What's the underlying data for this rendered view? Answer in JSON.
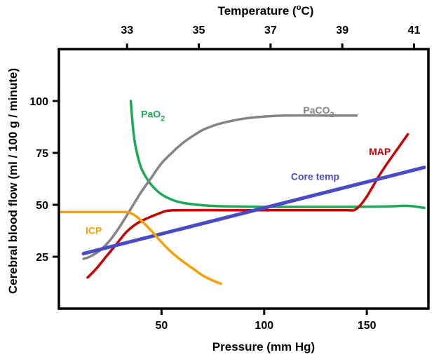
{
  "chart_data": {
    "type": "line",
    "title": "",
    "xlabel": "Pressure (mm Hg)",
    "ylabel": "Cerebral blood flow (ml / 100 g / minute)",
    "top_axis_label": "Temperature (°C)",
    "xlim": [
      0,
      180
    ],
    "ylim": [
      0,
      125
    ],
    "top_xlim": [
      31.1,
      41.4
    ],
    "x_ticks": [
      {
        "value": 50,
        "label": "50"
      },
      {
        "value": 100,
        "label": "100"
      },
      {
        "value": 150,
        "label": "150"
      }
    ],
    "y_ticks": [
      {
        "value": 25,
        "label": "25"
      },
      {
        "value": 50,
        "label": "50"
      },
      {
        "value": 75,
        "label": "75"
      },
      {
        "value": 100,
        "label": "100"
      }
    ],
    "top_ticks": [
      {
        "value": 33,
        "label": "33"
      },
      {
        "value": 35,
        "label": "35"
      },
      {
        "value": 37,
        "label": "37"
      },
      {
        "value": 39,
        "label": "39"
      },
      {
        "value": 41,
        "label": "41"
      }
    ],
    "grid": false,
    "series": [
      {
        "name": "PaO2",
        "label_main": "PaO",
        "label_sub": "2",
        "color": "#1aaa55",
        "label_at": [
          40,
          92
        ],
        "points": [
          [
            35,
            100
          ],
          [
            36,
            88
          ],
          [
            37,
            80
          ],
          [
            38.5,
            73
          ],
          [
            40,
            68
          ],
          [
            42,
            64
          ],
          [
            44,
            61
          ],
          [
            46,
            58.5
          ],
          [
            50,
            55
          ],
          [
            55,
            52.5
          ],
          [
            60,
            51
          ],
          [
            70,
            49.8
          ],
          [
            80,
            49.3
          ],
          [
            100,
            49
          ],
          [
            120,
            49
          ],
          [
            140,
            49
          ],
          [
            160,
            49.2
          ],
          [
            170,
            49.5
          ],
          [
            178,
            48.5
          ]
        ]
      },
      {
        "name": "PaCO2",
        "label_main": "PaCO",
        "label_sub": "2",
        "color": "#848484",
        "label_at": [
          119,
          94
        ],
        "points": [
          [
            12,
            24
          ],
          [
            15,
            25
          ],
          [
            20,
            28
          ],
          [
            25,
            33
          ],
          [
            30,
            40
          ],
          [
            35,
            48
          ],
          [
            40,
            56
          ],
          [
            45,
            63
          ],
          [
            50,
            70
          ],
          [
            55,
            75
          ],
          [
            60,
            79.5
          ],
          [
            65,
            83
          ],
          [
            70,
            86
          ],
          [
            75,
            88
          ],
          [
            80,
            89.5
          ],
          [
            90,
            91.5
          ],
          [
            100,
            92.5
          ],
          [
            110,
            93
          ],
          [
            130,
            93
          ],
          [
            145,
            93
          ]
        ]
      },
      {
        "name": "MAP",
        "label_main": "MAP",
        "label_sub": "",
        "color": "#c40000",
        "label_at": [
          151,
          74
        ],
        "points": [
          [
            14,
            15
          ],
          [
            18,
            19
          ],
          [
            23,
            25
          ],
          [
            28,
            31
          ],
          [
            33,
            37
          ],
          [
            38,
            41
          ],
          [
            43,
            43.5
          ],
          [
            48,
            45.5
          ],
          [
            52,
            47
          ],
          [
            55,
            47.3
          ],
          [
            60,
            47.4
          ],
          [
            80,
            47.4
          ],
          [
            100,
            47.4
          ],
          [
            120,
            47.4
          ],
          [
            140,
            47.4
          ],
          [
            144,
            47.5
          ],
          [
            147,
            50
          ],
          [
            150,
            54
          ],
          [
            153,
            59
          ],
          [
            156,
            64
          ],
          [
            160,
            70
          ],
          [
            165,
            77
          ],
          [
            170,
            84
          ]
        ]
      },
      {
        "name": "Core temp",
        "label_main": "Core temp",
        "label_sub": "",
        "color": "#4a4ac4",
        "label_at": [
          113,
          62
        ],
        "points": [
          [
            12,
            26.5
          ],
          [
            178,
            68
          ]
        ]
      },
      {
        "name": "ICP",
        "label_main": "ICP",
        "label_sub": "",
        "color": "#f5a000",
        "label_at": [
          13,
          36
        ],
        "points": [
          [
            0,
            46.5
          ],
          [
            5,
            46.5
          ],
          [
            15,
            46.5
          ],
          [
            25,
            46.5
          ],
          [
            30,
            46.5
          ],
          [
            33,
            46.5
          ],
          [
            36,
            45.5
          ],
          [
            40,
            42.5
          ],
          [
            45,
            37.5
          ],
          [
            50,
            32
          ],
          [
            55,
            27
          ],
          [
            60,
            23
          ],
          [
            65,
            19.5
          ],
          [
            70,
            16
          ],
          [
            75,
            13.5
          ],
          [
            79,
            12
          ]
        ]
      }
    ]
  }
}
